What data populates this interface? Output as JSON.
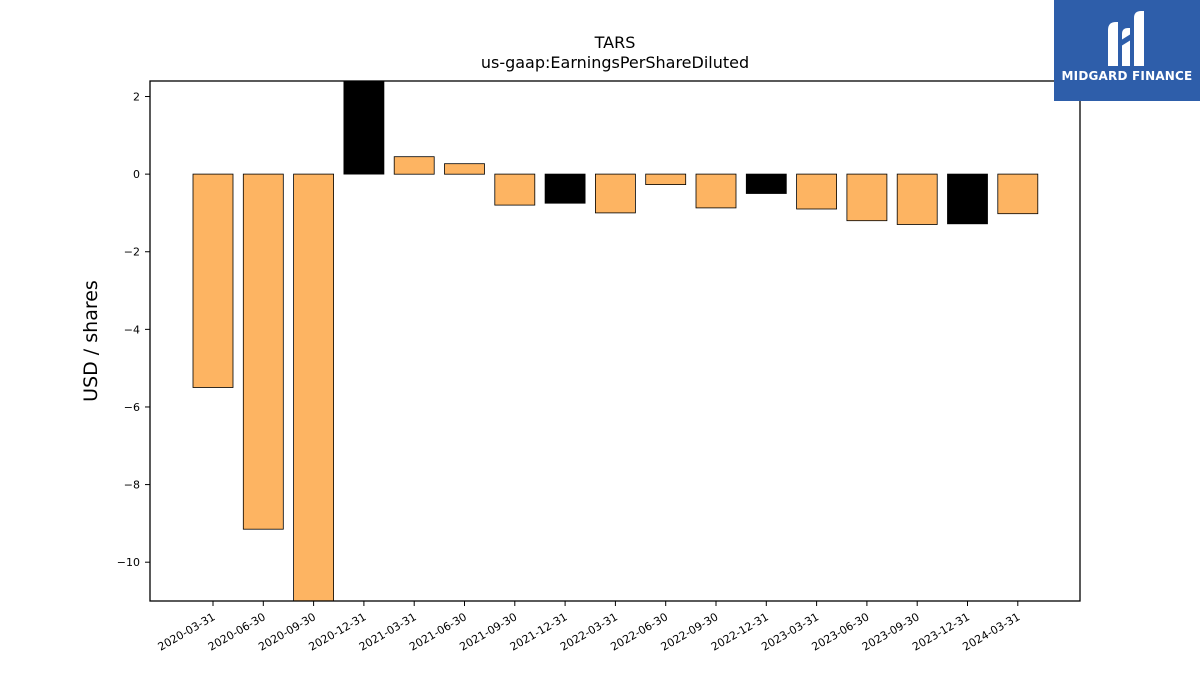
{
  "brand": {
    "name": "MIDGARD FINANCE",
    "background_color": "#2e5eaa",
    "icon": "midgard-logo-mark"
  },
  "chart_data": {
    "type": "bar",
    "title_lines": [
      "TARS",
      "us-gaap:EarningsPerShareDiluted"
    ],
    "xlabel": "",
    "ylabel": "USD / shares",
    "categories": [
      "2020-03-31",
      "2020-06-30",
      "2020-09-30",
      "2020-12-31",
      "2021-03-31",
      "2021-06-30",
      "2021-09-30",
      "2021-12-31",
      "2022-03-31",
      "2022-06-30",
      "2022-09-30",
      "2022-12-31",
      "2023-03-31",
      "2023-06-30",
      "2023-09-30",
      "2023-12-31",
      "2024-03-31"
    ],
    "values": [
      -5.5,
      -9.15,
      -11.3,
      2.4,
      0.45,
      0.27,
      -0.8,
      -0.75,
      -1.0,
      -0.27,
      -0.87,
      -0.5,
      -0.9,
      -1.2,
      -1.3,
      -1.28,
      -1.02
    ],
    "bar_colors": [
      "#fdb462",
      "#fdb462",
      "#fdb462",
      "#000000",
      "#fdb462",
      "#fdb462",
      "#fdb462",
      "#000000",
      "#fdb462",
      "#fdb462",
      "#fdb462",
      "#000000",
      "#fdb462",
      "#fdb462",
      "#fdb462",
      "#000000",
      "#fdb462"
    ],
    "ylim": [
      -11,
      2.4
    ],
    "yticks": [
      2,
      0,
      -2,
      -4,
      -6,
      -8,
      -10
    ],
    "ytick_labels": [
      "2",
      "0",
      "−2",
      "−4",
      "−6",
      "−8",
      "−10"
    ],
    "grid": false,
    "legend": "none"
  }
}
